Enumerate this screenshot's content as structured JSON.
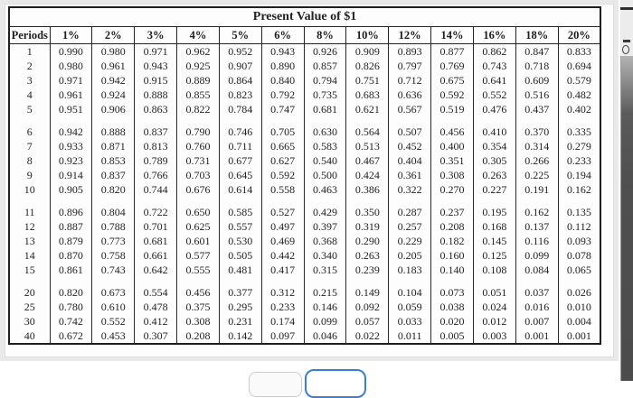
{
  "pv_table": {
    "title": "Present Value of $1",
    "header": [
      "Periods",
      "1%",
      "2%",
      "3%",
      "4%",
      "5%",
      "6%",
      "8%",
      "10%",
      "12%",
      "14%",
      "16%",
      "18%",
      "20%"
    ],
    "groups": [
      [
        [
          "1",
          "0.990",
          "0.980",
          "0.971",
          "0.962",
          "0.952",
          "0.943",
          "0.926",
          "0.909",
          "0.893",
          "0.877",
          "0.862",
          "0.847",
          "0.833"
        ],
        [
          "2",
          "0.980",
          "0.961",
          "0.943",
          "0.925",
          "0.907",
          "0.890",
          "0.857",
          "0.826",
          "0.797",
          "0.769",
          "0.743",
          "0.718",
          "0.694"
        ],
        [
          "3",
          "0.971",
          "0.942",
          "0.915",
          "0.889",
          "0.864",
          "0.840",
          "0.794",
          "0.751",
          "0.712",
          "0.675",
          "0.641",
          "0.609",
          "0.579"
        ],
        [
          "4",
          "0.961",
          "0.924",
          "0.888",
          "0.855",
          "0.823",
          "0.792",
          "0.735",
          "0.683",
          "0.636",
          "0.592",
          "0.552",
          "0.516",
          "0.482"
        ],
        [
          "5",
          "0.951",
          "0.906",
          "0.863",
          "0.822",
          "0.784",
          "0.747",
          "0.681",
          "0.621",
          "0.567",
          "0.519",
          "0.476",
          "0.437",
          "0.402"
        ]
      ],
      [
        [
          "6",
          "0.942",
          "0.888",
          "0.837",
          "0.790",
          "0.746",
          "0.705",
          "0.630",
          "0.564",
          "0.507",
          "0.456",
          "0.410",
          "0.370",
          "0.335"
        ],
        [
          "7",
          "0.933",
          "0.871",
          "0.813",
          "0.760",
          "0.711",
          "0.665",
          "0.583",
          "0.513",
          "0.452",
          "0.400",
          "0.354",
          "0.314",
          "0.279"
        ],
        [
          "8",
          "0.923",
          "0.853",
          "0.789",
          "0.731",
          "0.677",
          "0.627",
          "0.540",
          "0.467",
          "0.404",
          "0.351",
          "0.305",
          "0.266",
          "0.233"
        ],
        [
          "9",
          "0.914",
          "0.837",
          "0.766",
          "0.703",
          "0.645",
          "0.592",
          "0.500",
          "0.424",
          "0.361",
          "0.308",
          "0.263",
          "0.225",
          "0.194"
        ],
        [
          "10",
          "0.905",
          "0.820",
          "0.744",
          "0.676",
          "0.614",
          "0.558",
          "0.463",
          "0.386",
          "0.322",
          "0.270",
          "0.227",
          "0.191",
          "0.162"
        ]
      ],
      [
        [
          "11",
          "0.896",
          "0.804",
          "0.722",
          "0.650",
          "0.585",
          "0.527",
          "0.429",
          "0.350",
          "0.287",
          "0.237",
          "0.195",
          "0.162",
          "0.135"
        ],
        [
          "12",
          "0.887",
          "0.788",
          "0.701",
          "0.625",
          "0.557",
          "0.497",
          "0.397",
          "0.319",
          "0.257",
          "0.208",
          "0.168",
          "0.137",
          "0.112"
        ],
        [
          "13",
          "0.879",
          "0.773",
          "0.681",
          "0.601",
          "0.530",
          "0.469",
          "0.368",
          "0.290",
          "0.229",
          "0.182",
          "0.145",
          "0.116",
          "0.093"
        ],
        [
          "14",
          "0.870",
          "0.758",
          "0.661",
          "0.577",
          "0.505",
          "0.442",
          "0.340",
          "0.263",
          "0.205",
          "0.160",
          "0.125",
          "0.099",
          "0.078"
        ],
        [
          "15",
          "0.861",
          "0.743",
          "0.642",
          "0.555",
          "0.481",
          "0.417",
          "0.315",
          "0.239",
          "0.183",
          "0.140",
          "0.108",
          "0.084",
          "0.065"
        ]
      ],
      [
        [
          "20",
          "0.820",
          "0.673",
          "0.554",
          "0.456",
          "0.377",
          "0.312",
          "0.215",
          "0.149",
          "0.104",
          "0.073",
          "0.051",
          "0.037",
          "0.026"
        ],
        [
          "25",
          "0.780",
          "0.610",
          "0.478",
          "0.375",
          "0.295",
          "0.233",
          "0.146",
          "0.092",
          "0.059",
          "0.038",
          "0.024",
          "0.016",
          "0.010"
        ],
        [
          "30",
          "0.742",
          "0.552",
          "0.412",
          "0.308",
          "0.231",
          "0.174",
          "0.099",
          "0.057",
          "0.033",
          "0.020",
          "0.012",
          "0.007",
          "0.004"
        ],
        [
          "40",
          "0.672",
          "0.453",
          "0.307",
          "0.208",
          "0.142",
          "0.097",
          "0.046",
          "0.022",
          "0.011",
          "0.005",
          "0.003",
          "0.001",
          "0.001"
        ]
      ]
    ]
  },
  "colors": {
    "scan_background": "#e9e9e9",
    "table_border": "#1f1f1f",
    "primary_button_border": "#3a7fd5"
  }
}
